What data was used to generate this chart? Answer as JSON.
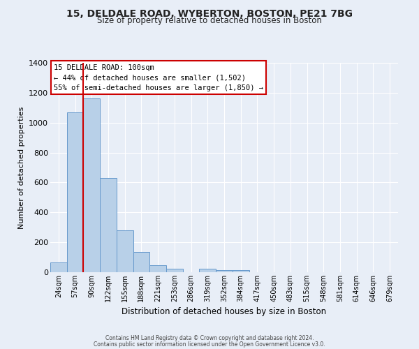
{
  "title": "15, DELDALE ROAD, WYBERTON, BOSTON, PE21 7BG",
  "subtitle": "Size of property relative to detached houses in Boston",
  "xlabel": "Distribution of detached houses by size in Boston",
  "ylabel": "Number of detached properties",
  "bar_labels": [
    "24sqm",
    "57sqm",
    "90sqm",
    "122sqm",
    "155sqm",
    "188sqm",
    "221sqm",
    "253sqm",
    "286sqm",
    "319sqm",
    "352sqm",
    "384sqm",
    "417sqm",
    "450sqm",
    "483sqm",
    "515sqm",
    "548sqm",
    "581sqm",
    "614sqm",
    "646sqm",
    "679sqm"
  ],
  "bar_values": [
    65,
    1070,
    1160,
    630,
    280,
    135,
    48,
    22,
    0,
    22,
    15,
    15,
    0,
    0,
    0,
    0,
    0,
    0,
    0,
    0,
    0
  ],
  "bar_color": "#b8d0e8",
  "bar_edge_color": "#6699cc",
  "vline_color": "#cc0000",
  "ylim": [
    0,
    1400
  ],
  "yticks": [
    0,
    200,
    400,
    600,
    800,
    1000,
    1200,
    1400
  ],
  "annotation_title": "15 DELDALE ROAD: 100sqm",
  "annotation_line1": "← 44% of detached houses are smaller (1,502)",
  "annotation_line2": "55% of semi-detached houses are larger (1,850) →",
  "annotation_box_color": "#ffffff",
  "annotation_box_edge": "#cc0000",
  "bg_color": "#e8eef7",
  "footer_line1": "Contains HM Land Registry data © Crown copyright and database right 2024.",
  "footer_line2": "Contains public sector information licensed under the Open Government Licence v3.0."
}
